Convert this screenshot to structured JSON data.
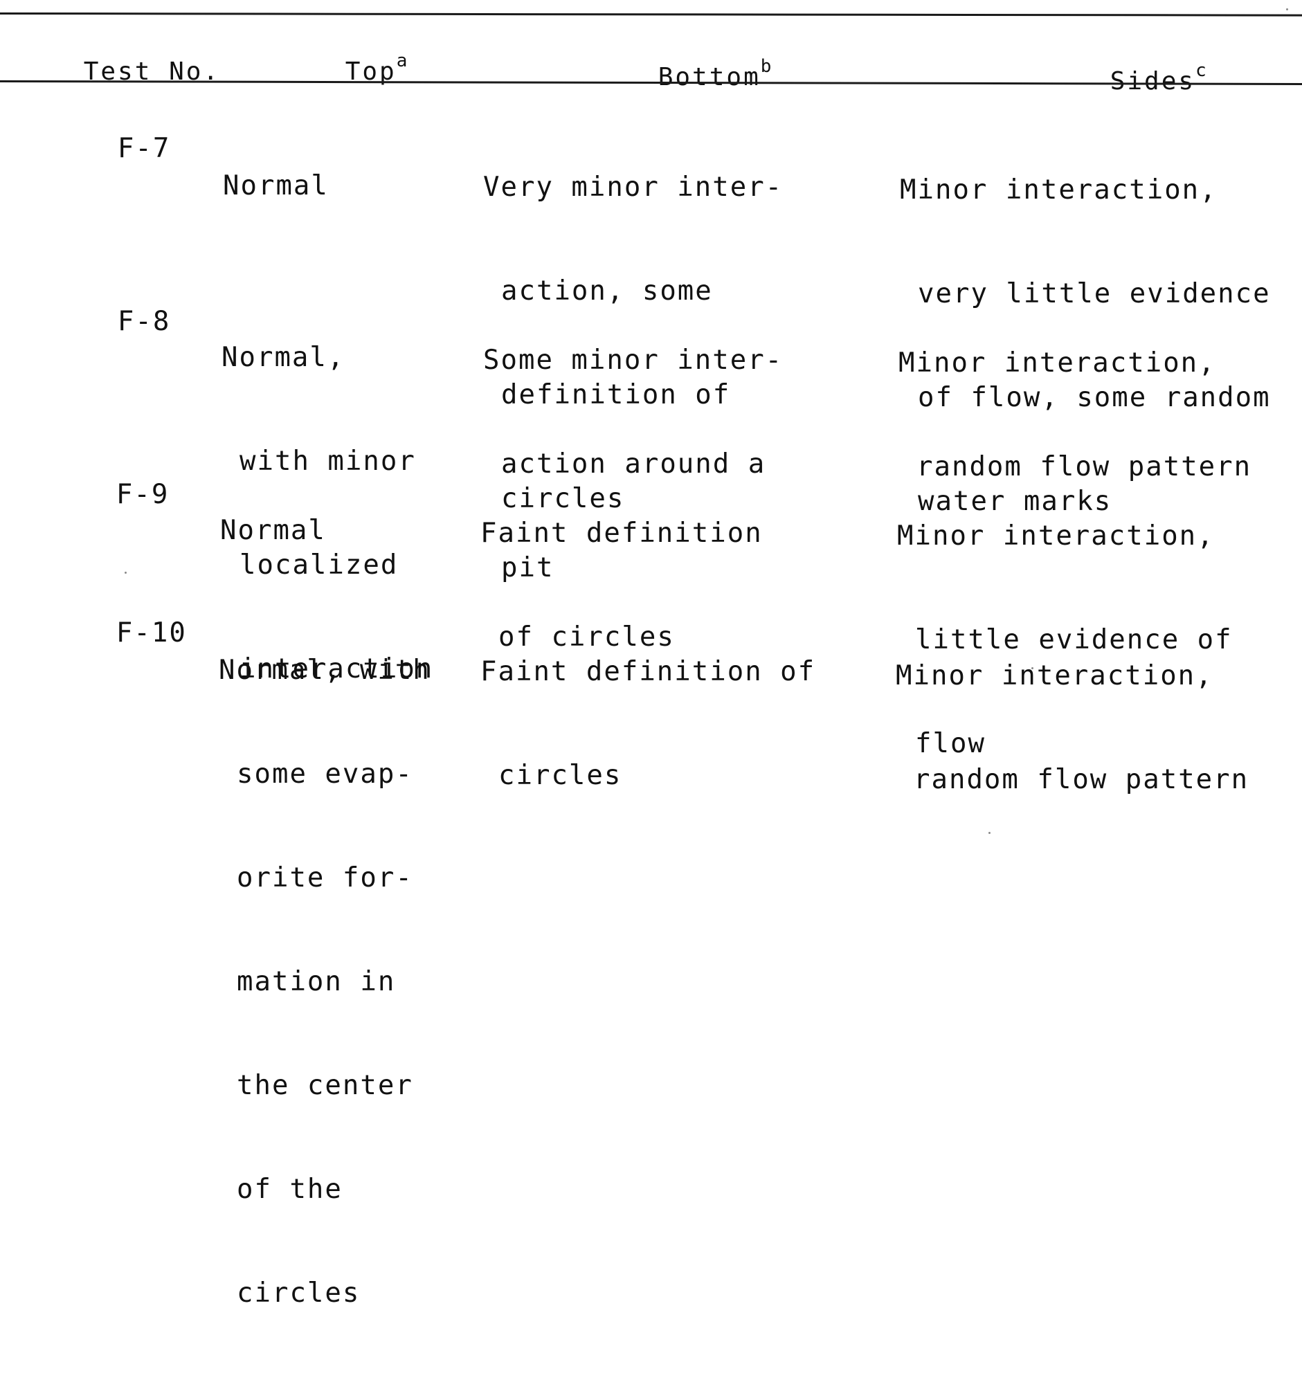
{
  "table": {
    "headers": [
      {
        "label": "Test No.",
        "sup": ""
      },
      {
        "label": "Top",
        "sup": "a"
      },
      {
        "label": "Bottom",
        "sup": "b"
      },
      {
        "label": "Sides",
        "sup": "c"
      }
    ],
    "rows": [
      {
        "test_no": "F-7",
        "top": [
          "Normal"
        ],
        "bottom": [
          "Very minor inter-",
          "action, some",
          "definition of",
          "circles"
        ],
        "sides": [
          "Minor interaction,",
          "very little evidence",
          "of flow, some random",
          "water marks"
        ]
      },
      {
        "test_no": "F-8",
        "top": [
          "Normal,",
          "with minor",
          "localized",
          "interaction"
        ],
        "bottom": [
          "Some minor inter-",
          "action around a",
          "pit"
        ],
        "sides": [
          "Minor interaction,",
          "random flow pattern"
        ]
      },
      {
        "test_no": "F-9",
        "top": [
          "Normal"
        ],
        "bottom": [
          "Faint definition",
          "of circles"
        ],
        "sides": [
          "Minor interaction,",
          "little evidence of",
          "flow"
        ]
      },
      {
        "test_no": "F-10",
        "top": [
          "Normal, with",
          "some evap-",
          "orite for-",
          "mation in",
          "the center",
          "of the",
          "circles"
        ],
        "bottom": [
          "Faint definition of",
          "circles"
        ],
        "sides": [
          "Minor interaction,",
          "random flow pattern"
        ]
      }
    ]
  }
}
